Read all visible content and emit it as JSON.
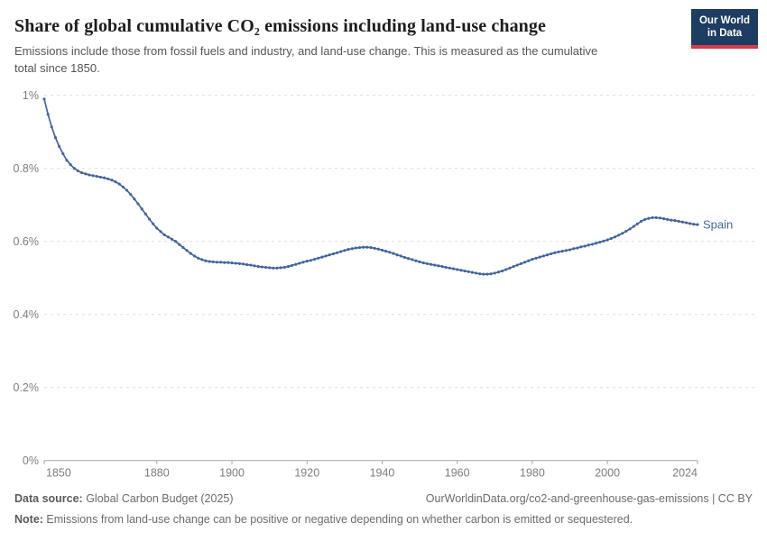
{
  "header": {
    "title": "Share of global cumulative CO₂ emissions including land-use change",
    "subtitle": "Emissions include those from fossil fuels and industry, and land-use change. This is measured as the cumulative total since 1850.",
    "logo": {
      "line1": "Our World",
      "line2": "in Data",
      "bg_color": "#1d3d63",
      "accent_color": "#d73a49"
    }
  },
  "chart_data": {
    "type": "line",
    "title": "Share of global cumulative CO₂ emissions including land-use change",
    "xlabel": "",
    "ylabel": "",
    "xlim": [
      1850,
      2024
    ],
    "ylim": [
      0,
      1
    ],
    "grid": true,
    "legend_position": "end-of-line",
    "x_ticks": [
      1850,
      1880,
      1900,
      1920,
      1940,
      1960,
      1980,
      2000,
      2024
    ],
    "y_ticks": [
      {
        "value": 0.0,
        "label": "0%"
      },
      {
        "value": 0.2,
        "label": "0.2%"
      },
      {
        "value": 0.4,
        "label": "0.4%"
      },
      {
        "value": 0.6,
        "label": "0.6%"
      },
      {
        "value": 0.8,
        "label": "0.8%"
      },
      {
        "value": 1.0,
        "label": "1%"
      }
    ],
    "series": [
      {
        "name": "Spain",
        "color": "#41649c",
        "start_year": 1850,
        "unit": "%",
        "values": [
          0.99,
          0.948,
          0.913,
          0.884,
          0.86,
          0.84,
          0.822,
          0.81,
          0.8,
          0.793,
          0.788,
          0.785,
          0.782,
          0.78,
          0.778,
          0.776,
          0.774,
          0.771,
          0.768,
          0.763,
          0.757,
          0.749,
          0.74,
          0.729,
          0.716,
          0.703,
          0.689,
          0.675,
          0.661,
          0.648,
          0.636,
          0.627,
          0.618,
          0.612,
          0.606,
          0.6,
          0.591,
          0.583,
          0.575,
          0.567,
          0.56,
          0.554,
          0.55,
          0.547,
          0.545,
          0.544,
          0.543,
          0.543,
          0.542,
          0.542,
          0.541,
          0.54,
          0.539,
          0.538,
          0.536,
          0.535,
          0.533,
          0.531,
          0.53,
          0.529,
          0.528,
          0.527,
          0.527,
          0.528,
          0.529,
          0.531,
          0.534,
          0.537,
          0.54,
          0.543,
          0.546,
          0.548,
          0.551,
          0.554,
          0.557,
          0.56,
          0.563,
          0.566,
          0.569,
          0.572,
          0.575,
          0.578,
          0.58,
          0.582,
          0.583,
          0.584,
          0.584,
          0.583,
          0.581,
          0.579,
          0.576,
          0.573,
          0.57,
          0.567,
          0.563,
          0.56,
          0.556,
          0.553,
          0.55,
          0.547,
          0.544,
          0.541,
          0.539,
          0.537,
          0.535,
          0.533,
          0.531,
          0.529,
          0.527,
          0.525,
          0.523,
          0.521,
          0.519,
          0.517,
          0.515,
          0.513,
          0.511,
          0.51,
          0.51,
          0.511,
          0.513,
          0.516,
          0.519,
          0.523,
          0.527,
          0.531,
          0.535,
          0.539,
          0.543,
          0.547,
          0.551,
          0.554,
          0.557,
          0.56,
          0.563,
          0.566,
          0.569,
          0.571,
          0.573,
          0.575,
          0.577,
          0.58,
          0.582,
          0.585,
          0.587,
          0.59,
          0.592,
          0.595,
          0.598,
          0.601,
          0.604,
          0.608,
          0.612,
          0.617,
          0.622,
          0.628,
          0.634,
          0.641,
          0.648,
          0.655,
          0.66,
          0.663,
          0.665,
          0.665,
          0.664,
          0.662,
          0.66,
          0.658,
          0.657,
          0.655,
          0.653,
          0.651,
          0.649,
          0.647,
          0.646
        ]
      }
    ]
  },
  "footer": {
    "source_label": "Data source:",
    "source_text": " Global Carbon Budget (2025)",
    "url_text": "OurWorldinData.org/co2-and-greenhouse-gas-emissions | CC BY",
    "note_label": "Note:",
    "note_text": " Emissions from land-use change can be positive or negative depending on whether carbon is emitted or sequestered."
  }
}
